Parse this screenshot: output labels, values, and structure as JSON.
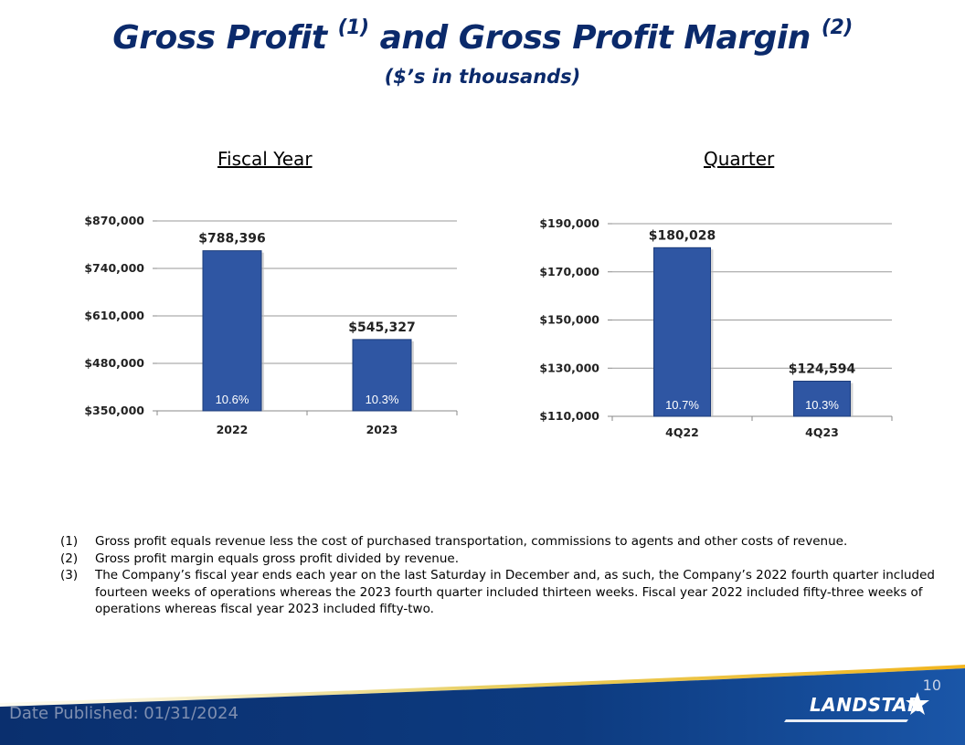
{
  "title": {
    "main_part1": "Gross Profit ",
    "sup1": "(1)",
    "main_part2": " and Gross Profit Margin ",
    "sup2": "(2)",
    "subtitle": "($’s in thousands)"
  },
  "headings": {
    "fiscal_year": "Fiscal Year",
    "quarter": "Quarter"
  },
  "colors": {
    "bar": "#2f56a3",
    "bar_edge": "#1d3c7a",
    "title": "#0b2a6b",
    "footer": "#0d3b7c"
  },
  "chart_data": [
    {
      "type": "bar",
      "title": "Fiscal Year",
      "categories": [
        "2022",
        "2023"
      ],
      "values": [
        788396,
        545327
      ],
      "value_labels": [
        "$788,396",
        "$545,327"
      ],
      "margin_labels": [
        "10.6%",
        "10.3%"
      ],
      "ylim": [
        350000,
        870000
      ],
      "yticks": [
        350000,
        480000,
        610000,
        740000,
        870000
      ],
      "ytick_labels": [
        "$350,000",
        "$480,000",
        "$610,000",
        "$740,000",
        "$870,000"
      ],
      "grid": true
    },
    {
      "type": "bar",
      "title": "Quarter",
      "categories": [
        "4Q22",
        "4Q23"
      ],
      "values": [
        180028,
        124594
      ],
      "value_labels": [
        "$180,028",
        "$124,594"
      ],
      "margin_labels": [
        "10.7%",
        "10.3%"
      ],
      "ylim": [
        110000,
        190000
      ],
      "yticks": [
        110000,
        130000,
        150000,
        170000,
        190000
      ],
      "ytick_labels": [
        "$110,000",
        "$130,000",
        "$150,000",
        "$170,000",
        "$190,000"
      ],
      "grid": true
    }
  ],
  "footnotes": [
    {
      "num": "(1)",
      "text": "Gross profit equals revenue less the cost of purchased transportation, commissions to agents and other costs of revenue."
    },
    {
      "num": "(2)",
      "text": "Gross profit margin equals gross profit divided by revenue."
    },
    {
      "num": "(3)",
      "text": "The Company’s fiscal year ends each year on the last Saturday in December and, as such, the Company’s 2022 fourth quarter included fourteen weeks of operations whereas the 2023 fourth quarter included thirteen weeks. Fiscal year 2022 included fifty-three weeks of operations whereas fiscal year 2023 included fifty-two."
    }
  ],
  "footer": {
    "page_number": "10",
    "date_published": "Date Published:  01/31/2024",
    "logo_text": "LANDSTAR"
  }
}
